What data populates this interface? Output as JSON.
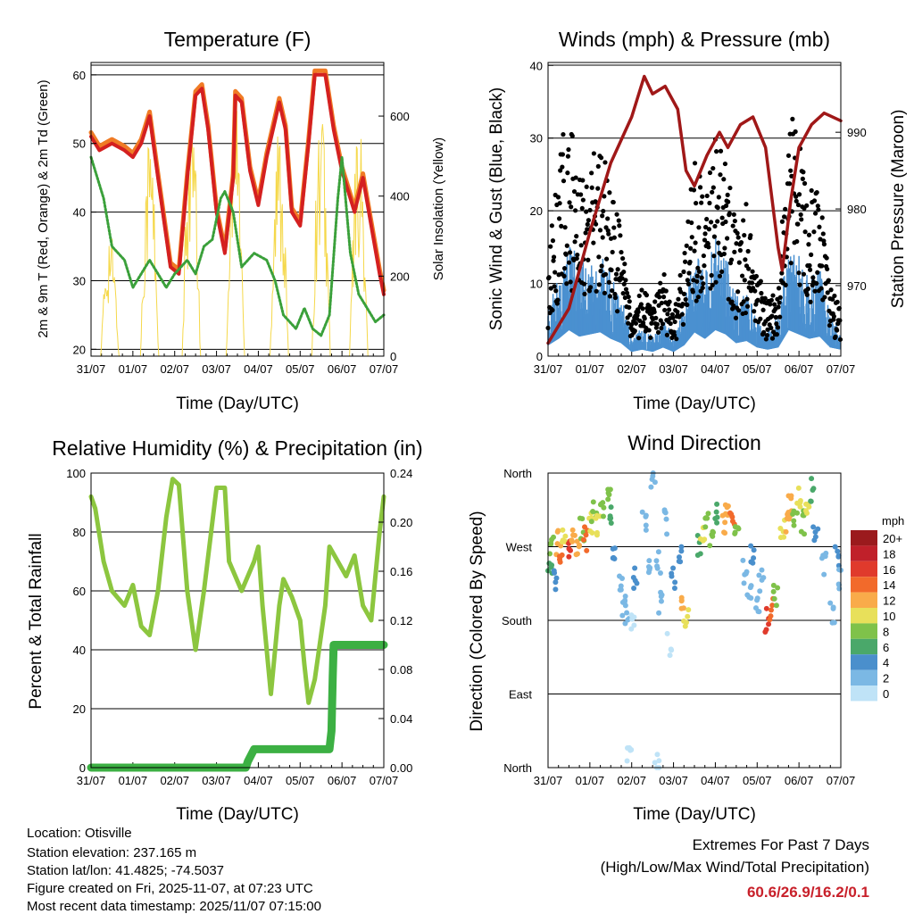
{
  "x_ticks": [
    "31/07",
    "01/07",
    "02/07",
    "03/07",
    "04/07",
    "05/07",
    "06/07",
    "07/07"
  ],
  "colors": {
    "temp_red": "#d42020",
    "temp_orange": "#f07b25",
    "dewpoint": "#3aa03a",
    "solar": "#f5d84a",
    "gust": "#000000",
    "wind": "#4a90d0",
    "pressure": "#a01818",
    "rh": "#8cc63f",
    "precip": "#3cb043",
    "extremes": "#c8202a"
  },
  "chart_data": [
    {
      "type": "line",
      "title": "Temperature (F)",
      "xlabel": "Time (Day/UTC)",
      "ylabel": "2m & 9m T (Red, Orange) & 2m Td (Green)",
      "ylabel_right": "Solar Insolation (Yellow)",
      "xlim": [
        0,
        7
      ],
      "ylim": [
        19,
        61.8
      ],
      "ylim_right": [
        0,
        734
      ],
      "yticks": [
        20,
        30,
        40,
        50,
        60
      ],
      "yticks_right": [
        0,
        200,
        400,
        600
      ],
      "series": [
        {
          "name": "2m T",
          "axis": "left",
          "x": [
            0,
            0.2,
            0.5,
            0.8,
            1.0,
            1.2,
            1.4,
            1.6,
            1.9,
            2.1,
            2.3,
            2.5,
            2.65,
            2.8,
            3.0,
            3.2,
            3.4,
            3.45,
            3.6,
            3.8,
            4.0,
            4.2,
            4.5,
            4.65,
            4.8,
            5.0,
            5.2,
            5.35,
            5.6,
            5.8,
            6.0,
            6.3,
            6.5,
            6.7,
            6.9,
            7.0
          ],
          "y": [
            51,
            49,
            50,
            49,
            48,
            50,
            54,
            45,
            32,
            31,
            45,
            57,
            58,
            52,
            40,
            34,
            45,
            57,
            56,
            46,
            41,
            48,
            56,
            52,
            40,
            38,
            50,
            60,
            60,
            52,
            46,
            40,
            45,
            38,
            31,
            28
          ]
        },
        {
          "name": "Td",
          "axis": "left",
          "x": [
            0,
            0.3,
            0.5,
            0.8,
            1.0,
            1.2,
            1.4,
            1.6,
            1.8,
            2.0,
            2.3,
            2.5,
            2.7,
            2.9,
            3.1,
            3.2,
            3.4,
            3.6,
            3.9,
            4.2,
            4.4,
            4.6,
            4.9,
            5.1,
            5.3,
            5.5,
            5.7,
            5.9,
            6.0,
            6.2,
            6.4,
            6.6,
            6.8,
            7.0
          ],
          "y": [
            48,
            42,
            35,
            33,
            29,
            31,
            33,
            31,
            29,
            31,
            33,
            31,
            35,
            36,
            42,
            43,
            40,
            32,
            34,
            33,
            30,
            25,
            23,
            26,
            23,
            22,
            25,
            42,
            48,
            34,
            28,
            26,
            24,
            25
          ]
        },
        {
          "name": "Solar peaks",
          "axis": "right",
          "x": [
            0.45,
            1.4,
            2.4,
            3.45,
            4.5,
            5.5,
            6.4
          ],
          "y": [
            330,
            600,
            650,
            700,
            600,
            650,
            600
          ]
        }
      ]
    },
    {
      "type": "line",
      "title": "Winds (mph) & Pressure (mb)",
      "xlabel": "Time (Day/UTC)",
      "ylabel": "Sonic Wind & Gust (Blue, Black)",
      "ylabel_right": "Station Pressure (Maroon)",
      "xlim": [
        0,
        7
      ],
      "ylim": [
        0,
        40.4
      ],
      "ylim_right": [
        960.8,
        999.1
      ],
      "yticks": [
        0,
        10,
        20,
        30,
        40
      ],
      "yticks_right": [
        970,
        980,
        990
      ],
      "series": [
        {
          "name": "Gust",
          "axis": "left",
          "x": [
            0,
            0.25,
            0.5,
            0.75,
            1,
            1.25,
            1.5,
            1.75,
            2,
            2.25,
            2.5,
            2.75,
            3,
            3.25,
            3.5,
            3.75,
            4,
            4.25,
            4.5,
            4.75,
            5,
            5.25,
            5.5,
            5.75,
            6,
            6.25,
            6.5,
            6.75,
            7
          ],
          "y": [
            10,
            22,
            28,
            20,
            22,
            25,
            18,
            14,
            4,
            8,
            5,
            10,
            4,
            12,
            22,
            18,
            25,
            22,
            14,
            17,
            10,
            6,
            8,
            28,
            24,
            18,
            22,
            8,
            5
          ]
        },
        {
          "name": "Wind",
          "axis": "left",
          "x": [
            0,
            0.25,
            0.5,
            0.75,
            1,
            1.25,
            1.5,
            1.75,
            2,
            2.25,
            2.5,
            2.75,
            3,
            3.25,
            3.5,
            3.75,
            4,
            4.25,
            4.5,
            4.75,
            5,
            5.25,
            5.5,
            5.75,
            6,
            6.25,
            6.5,
            6.75,
            7
          ],
          "y": [
            5,
            8,
            12,
            9,
            10,
            11,
            8,
            6,
            2,
            3,
            2,
            4,
            2,
            5,
            11,
            8,
            12,
            10,
            6,
            7,
            4,
            3,
            4,
            12,
            10,
            8,
            9,
            4,
            3
          ]
        },
        {
          "name": "Pressure",
          "axis": "right",
          "x": [
            0,
            0.5,
            1,
            1.5,
            2.0,
            2.3,
            2.5,
            2.8,
            3.1,
            3.3,
            3.5,
            3.8,
            4.1,
            4.3,
            4.6,
            4.9,
            5.2,
            5.5,
            5.6,
            5.8,
            6.0,
            6.3,
            6.6,
            7.0
          ],
          "y": [
            962.5,
            967,
            977,
            986,
            992,
            997.3,
            995,
            996,
            993,
            985,
            983,
            987,
            990,
            988,
            991,
            992,
            988,
            975,
            972,
            981,
            988,
            991,
            992.5,
            991.5
          ]
        }
      ]
    },
    {
      "type": "line",
      "title": "Relative Humidity (%) & Precipitation (in)",
      "xlabel": "Time (Day/UTC)",
      "ylabel": "Percent & Total Rainfall",
      "xlim": [
        0,
        7
      ],
      "ylim": [
        0,
        100
      ],
      "ylim_right": [
        0,
        0.24
      ],
      "yticks": [
        0,
        20,
        40,
        60,
        80,
        100
      ],
      "yticks_right": [
        "0.00",
        "0.04",
        "0.08",
        "0.12",
        "0.16",
        "0.20",
        "0.24"
      ],
      "series": [
        {
          "name": "RH",
          "axis": "left",
          "x": [
            0,
            0.1,
            0.3,
            0.5,
            0.8,
            1.0,
            1.2,
            1.4,
            1.6,
            1.8,
            1.95,
            2.1,
            2.3,
            2.5,
            2.7,
            3.0,
            3.2,
            3.3,
            3.6,
            3.9,
            4.0,
            4.1,
            4.3,
            4.5,
            4.6,
            4.8,
            5.0,
            5.1,
            5.2,
            5.35,
            5.6,
            5.7,
            5.9,
            6.1,
            6.3,
            6.5,
            6.7,
            6.9,
            7.0
          ],
          "y": [
            92,
            88,
            70,
            60,
            55,
            62,
            48,
            45,
            60,
            85,
            98,
            96,
            60,
            40,
            60,
            95,
            95,
            70,
            60,
            70,
            75,
            55,
            25,
            55,
            64,
            58,
            50,
            35,
            22,
            30,
            55,
            75,
            70,
            65,
            72,
            55,
            50,
            80,
            92
          ]
        },
        {
          "name": "Precip",
          "axis": "right",
          "x": [
            0,
            3.7,
            3.75,
            3.9,
            5.7,
            5.75,
            5.78,
            5.8,
            7.0
          ],
          "y": [
            0,
            0,
            0.005,
            0.015,
            0.015,
            0.03,
            0.075,
            0.1,
            0.1
          ]
        }
      ]
    },
    {
      "type": "scatter",
      "title": "Wind Direction",
      "xlabel": "Time (Day/UTC)",
      "ylabel": "Direction (Colored By Speed)",
      "xlim": [
        0,
        7
      ],
      "ylim": [
        0,
        360
      ],
      "yticks": [
        "North",
        "East",
        "South",
        "West",
        "North"
      ],
      "legend": {
        "title": "mph",
        "labels": [
          "20+",
          "18",
          "16",
          "14",
          "12",
          "10",
          "8",
          "6",
          "4",
          "2",
          "0"
        ],
        "colors": [
          "#9b1a1d",
          "#c0202a",
          "#e03a2c",
          "#f26a2b",
          "#f9ab4a",
          "#e8e05a",
          "#7fc24a",
          "#4aa86a",
          "#4a8fcc",
          "#7bb8e4",
          "#bfe3f7"
        ],
        "placement": "right"
      },
      "points": [
        [
          0.05,
          250,
          6
        ],
        [
          0.1,
          270,
          8
        ],
        [
          0.15,
          230,
          4
        ],
        [
          0.25,
          275,
          12
        ],
        [
          0.3,
          265,
          14
        ],
        [
          0.4,
          280,
          10
        ],
        [
          0.5,
          270,
          16
        ],
        [
          0.6,
          285,
          13
        ],
        [
          0.7,
          275,
          12
        ],
        [
          0.8,
          290,
          9
        ],
        [
          0.9,
          280,
          14
        ],
        [
          1.0,
          300,
          11
        ],
        [
          1.1,
          310,
          8
        ],
        [
          1.2,
          295,
          10
        ],
        [
          1.3,
          320,
          9
        ],
        [
          1.45,
          330,
          8
        ],
        [
          1.5,
          310,
          7
        ],
        [
          1.6,
          270,
          5
        ],
        [
          1.75,
          220,
          3
        ],
        [
          1.8,
          200,
          2
        ],
        [
          1.9,
          190,
          3
        ],
        [
          2.0,
          175,
          1
        ],
        [
          2.1,
          230,
          4
        ],
        [
          1.95,
          20,
          1
        ],
        [
          2.3,
          300,
          2
        ],
        [
          2.4,
          240,
          3
        ],
        [
          2.5,
          350,
          2
        ],
        [
          2.6,
          10,
          1
        ],
        [
          2.65,
          250,
          3
        ],
        [
          2.7,
          200,
          2
        ],
        [
          2.8,
          300,
          3
        ],
        [
          2.9,
          150,
          1
        ],
        [
          3.0,
          230,
          4
        ],
        [
          3.15,
          260,
          4
        ],
        [
          3.25,
          195,
          12
        ],
        [
          3.3,
          185,
          11
        ],
        [
          3.6,
          270,
          7
        ],
        [
          3.7,
          290,
          10
        ],
        [
          3.8,
          300,
          8
        ],
        [
          3.9,
          280,
          9
        ],
        [
          4.0,
          310,
          6
        ],
        [
          4.2,
          300,
          13
        ],
        [
          4.3,
          320,
          12
        ],
        [
          4.4,
          310,
          15
        ],
        [
          4.5,
          290,
          8
        ],
        [
          4.7,
          240,
          3
        ],
        [
          4.8,
          220,
          2
        ],
        [
          4.9,
          260,
          4
        ],
        [
          5.0,
          200,
          3
        ],
        [
          5.1,
          230,
          2
        ],
        [
          5.25,
          180,
          16
        ],
        [
          5.35,
          195,
          14
        ],
        [
          5.45,
          210,
          9
        ],
        [
          5.6,
          290,
          11
        ],
        [
          5.7,
          300,
          13
        ],
        [
          5.8,
          320,
          12
        ],
        [
          5.9,
          310,
          9
        ],
        [
          6.0,
          330,
          10
        ],
        [
          6.1,
          300,
          8
        ],
        [
          6.2,
          320,
          11
        ],
        [
          6.3,
          340,
          7
        ],
        [
          6.4,
          290,
          5
        ],
        [
          6.6,
          250,
          3
        ],
        [
          6.8,
          190,
          2
        ],
        [
          6.9,
          260,
          4
        ],
        [
          7.0,
          230,
          3
        ]
      ]
    }
  ],
  "info": {
    "location": "Location: Otisville",
    "elevation": "Station elevation: 237.165 m",
    "latlon": "Station lat/lon: 41.4825; -74.5037",
    "created": "Figure created on Fri, 2025-11-07, at 07:23 UTC",
    "recent": "Most recent data timestamp: 2025/11/07 07:15:00"
  },
  "extremes": {
    "title": "Extremes For Past 7 Days",
    "subtitle": "(High/Low/Max Wind/Total Precipitation)",
    "values": "60.6/26.9/16.2/0.1"
  }
}
